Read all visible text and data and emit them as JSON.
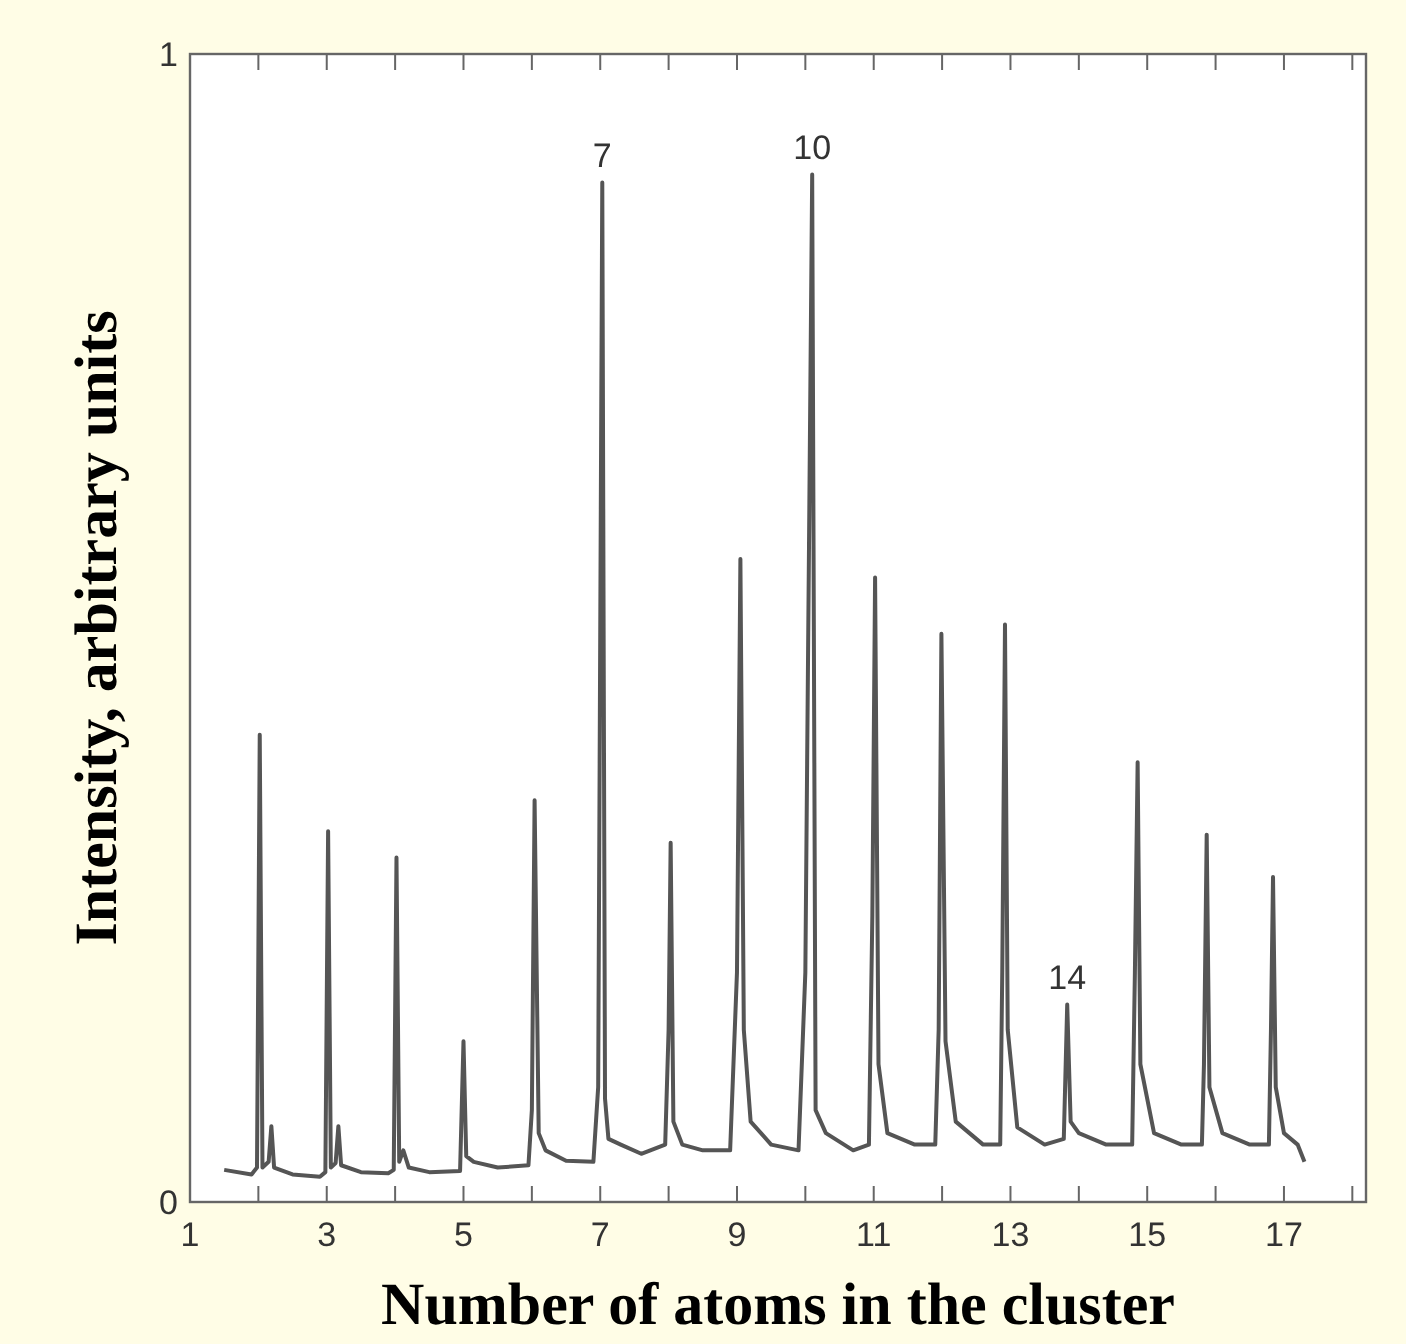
{
  "chart_data": {
    "type": "line",
    "xlabel": "Number of atoms in the cluster",
    "ylabel": "Intensity, arbitrary units",
    "xlim": [
      1,
      18.2
    ],
    "ylim": [
      0,
      1
    ],
    "xticks": [
      1,
      {
        "value": 2,
        "label": null
      },
      3,
      {
        "value": 4,
        "label": null
      },
      5,
      {
        "value": 6,
        "label": null
      },
      7,
      {
        "value": 8,
        "label": null
      },
      9,
      {
        "value": 10,
        "label": null
      },
      11,
      {
        "value": 12,
        "label": null
      },
      13,
      {
        "value": 14,
        "label": null
      },
      15,
      {
        "value": 16,
        "label": null
      },
      17,
      {
        "value": 18,
        "label": null
      }
    ],
    "yticks": [
      0,
      1
    ],
    "grid": false,
    "marker": "none",
    "line_style": "solid",
    "annotations": [
      {
        "text": "7",
        "x": 7.03,
        "y": 0.888
      },
      {
        "text": "10",
        "x": 10.1,
        "y": 0.895
      },
      {
        "text": "14",
        "x": 13.83,
        "y": 0.172
      }
    ],
    "series": [
      {
        "color": "#555555",
        "x": [
          1.5,
          1.9,
          1.98,
          2.02,
          2.06,
          2.15,
          2.19,
          2.23,
          2.5,
          2.9,
          2.98,
          3.02,
          3.06,
          3.13,
          3.17,
          3.21,
          3.5,
          3.9,
          3.98,
          4.02,
          4.06,
          4.12,
          4.2,
          4.5,
          4.95,
          5.0,
          5.04,
          5.15,
          5.5,
          5.95,
          6.0,
          6.04,
          6.1,
          6.2,
          6.5,
          6.9,
          6.97,
          7.03,
          7.07,
          7.12,
          7.3,
          7.6,
          7.95,
          8.0,
          8.03,
          8.07,
          8.2,
          8.5,
          8.9,
          9.0,
          9.05,
          9.1,
          9.2,
          9.5,
          9.9,
          10.0,
          10.1,
          10.15,
          10.3,
          10.7,
          10.93,
          10.98,
          11.02,
          11.07,
          11.2,
          11.6,
          11.9,
          11.95,
          11.99,
          12.05,
          12.2,
          12.6,
          12.85,
          12.88,
          12.92,
          12.96,
          13.1,
          13.5,
          13.78,
          13.83,
          13.88,
          14.0,
          14.4,
          14.78,
          14.82,
          14.86,
          14.9,
          15.1,
          15.5,
          15.8,
          15.83,
          15.87,
          15.91,
          16.1,
          16.5,
          16.78,
          16.81,
          16.84,
          16.88,
          17.0,
          17.2,
          17.3
        ],
        "values": [
          0.028,
          0.024,
          0.03,
          0.407,
          0.03,
          0.035,
          0.066,
          0.03,
          0.024,
          0.022,
          0.026,
          0.323,
          0.03,
          0.034,
          0.066,
          0.032,
          0.026,
          0.025,
          0.028,
          0.3,
          0.035,
          0.045,
          0.03,
          0.026,
          0.027,
          0.14,
          0.04,
          0.035,
          0.03,
          0.032,
          0.08,
          0.35,
          0.06,
          0.045,
          0.036,
          0.035,
          0.1,
          0.888,
          0.09,
          0.055,
          0.05,
          0.042,
          0.05,
          0.15,
          0.313,
          0.07,
          0.05,
          0.045,
          0.045,
          0.2,
          0.56,
          0.15,
          0.07,
          0.05,
          0.045,
          0.2,
          0.895,
          0.08,
          0.06,
          0.045,
          0.05,
          0.25,
          0.544,
          0.12,
          0.06,
          0.05,
          0.05,
          0.15,
          0.495,
          0.14,
          0.07,
          0.05,
          0.05,
          0.2,
          0.503,
          0.15,
          0.065,
          0.05,
          0.055,
          0.172,
          0.07,
          0.06,
          0.05,
          0.05,
          0.2,
          0.383,
          0.12,
          0.06,
          0.05,
          0.05,
          0.12,
          0.32,
          0.1,
          0.06,
          0.05,
          0.05,
          0.15,
          0.283,
          0.1,
          0.06,
          0.05,
          0.035
        ]
      }
    ]
  }
}
